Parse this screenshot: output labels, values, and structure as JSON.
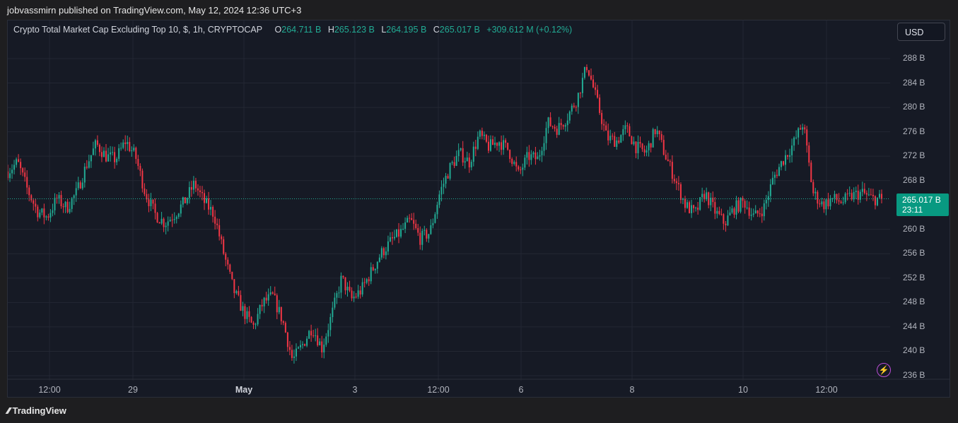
{
  "published_line": "jobvassmirn published on TradingView.com, May 12, 2024 12:36 UTC+3",
  "legend": {
    "symbol": "Crypto Total Market Cap Excluding Top 10, $, 1h, CRYPTOCAP",
    "o_label": "O",
    "o_value": "264.711 B",
    "h_label": "H",
    "h_value": "265.123 B",
    "l_label": "L",
    "l_value": "264.195 B",
    "c_label": "C",
    "c_value": "265.017 B",
    "change": "+309.612 M (+0.12%)"
  },
  "currency": "USD",
  "last_price": {
    "value": "265.017 B",
    "countdown": "23:11"
  },
  "brand": "TradingView",
  "colors": {
    "up": "#22ab94",
    "down": "#f23645",
    "background": "#161a25",
    "grid": "#232733"
  },
  "chart_data": {
    "type": "candlestick",
    "y_ticks": [
      "288 B",
      "284 B",
      "280 B",
      "276 B",
      "272 B",
      "268 B",
      "260 B",
      "256 B",
      "252 B",
      "248 B",
      "244 B",
      "240 B",
      "236 B"
    ],
    "x_ticks": [
      "12:00",
      "29",
      "May",
      "3",
      "12:00",
      "6",
      "8",
      "10",
      "12:00"
    ],
    "y_unit": "B",
    "ylim": [
      236,
      290
    ],
    "last_close": 265.017,
    "close_path": [
      {
        "d": "Apr 27 12:00",
        "v": 269.5
      },
      {
        "d": "",
        "v": 271.0
      },
      {
        "d": "",
        "v": 266.5
      },
      {
        "d": "",
        "v": 263.0
      },
      {
        "d": "",
        "v": 262.0
      },
      {
        "d": "",
        "v": 265.0
      },
      {
        "d": "",
        "v": 263.5
      },
      {
        "d": "Apr 28",
        "v": 266.0
      },
      {
        "d": "",
        "v": 270.5
      },
      {
        "d": "",
        "v": 274.0
      },
      {
        "d": "",
        "v": 272.0
      },
      {
        "d": "",
        "v": 271.5
      },
      {
        "d": "",
        "v": 274.5
      },
      {
        "d": "Apr 29",
        "v": 272.0
      },
      {
        "d": "",
        "v": 266.0
      },
      {
        "d": "",
        "v": 262.5
      },
      {
        "d": "",
        "v": 261.0
      },
      {
        "d": "",
        "v": 262.5
      },
      {
        "d": "",
        "v": 264.5
      },
      {
        "d": "",
        "v": 267.5
      },
      {
        "d": "",
        "v": 264.5
      },
      {
        "d": "",
        "v": 262.5
      },
      {
        "d": "Apr 30",
        "v": 256.0
      },
      {
        "d": "",
        "v": 250.0
      },
      {
        "d": "",
        "v": 246.5
      },
      {
        "d": "",
        "v": 244.0
      },
      {
        "d": "",
        "v": 248.0
      },
      {
        "d": "",
        "v": 249.0
      },
      {
        "d": "May",
        "v": 245.0
      },
      {
        "d": "",
        "v": 238.5
      },
      {
        "d": "",
        "v": 241.0
      },
      {
        "d": "",
        "v": 244.0
      },
      {
        "d": "",
        "v": 240.5
      },
      {
        "d": "",
        "v": 246.0
      },
      {
        "d": "",
        "v": 252.0
      },
      {
        "d": "",
        "v": 248.5
      },
      {
        "d": "May 2",
        "v": 250.0
      },
      {
        "d": "",
        "v": 253.0
      },
      {
        "d": "",
        "v": 256.0
      },
      {
        "d": "",
        "v": 258.0
      },
      {
        "d": "",
        "v": 259.5
      },
      {
        "d": "",
        "v": 261.5
      },
      {
        "d": "",
        "v": 258.5
      },
      {
        "d": "May 3",
        "v": 259.5
      },
      {
        "d": "",
        "v": 266.0
      },
      {
        "d": "",
        "v": 270.0
      },
      {
        "d": "",
        "v": 272.5
      },
      {
        "d": "",
        "v": 271.0
      },
      {
        "d": "",
        "v": 275.5
      },
      {
        "d": "",
        "v": 273.5
      },
      {
        "d": "",
        "v": 274.5
      },
      {
        "d": "",
        "v": 273.0
      },
      {
        "d": "May 4",
        "v": 269.0
      },
      {
        "d": "",
        "v": 272.0
      },
      {
        "d": "",
        "v": 271.5
      },
      {
        "d": "",
        "v": 277.5
      },
      {
        "d": "",
        "v": 276.5
      },
      {
        "d": "",
        "v": 278.5
      },
      {
        "d": "May 6",
        "v": 281.5
      },
      {
        "d": "",
        "v": 287.0
      },
      {
        "d": "",
        "v": 281.0
      },
      {
        "d": "",
        "v": 275.0
      },
      {
        "d": "",
        "v": 274.5
      },
      {
        "d": "",
        "v": 276.5
      },
      {
        "d": "",
        "v": 273.5
      },
      {
        "d": "",
        "v": 272.5
      },
      {
        "d": "",
        "v": 276.5
      },
      {
        "d": "",
        "v": 272.0
      },
      {
        "d": "May 8",
        "v": 268.0
      },
      {
        "d": "",
        "v": 264.0
      },
      {
        "d": "",
        "v": 262.5
      },
      {
        "d": "",
        "v": 266.0
      },
      {
        "d": "",
        "v": 263.0
      },
      {
        "d": "",
        "v": 261.0
      },
      {
        "d": "",
        "v": 263.5
      },
      {
        "d": "",
        "v": 264.5
      },
      {
        "d": "",
        "v": 262.0
      },
      {
        "d": "",
        "v": 263.5
      },
      {
        "d": "May 10",
        "v": 268.5
      },
      {
        "d": "",
        "v": 271.5
      },
      {
        "d": "",
        "v": 274.0
      },
      {
        "d": "",
        "v": 277.5
      },
      {
        "d": "",
        "v": 266.0
      },
      {
        "d": "",
        "v": 264.0
      },
      {
        "d": "",
        "v": 265.0
      },
      {
        "d": "",
        "v": 264.5
      },
      {
        "d": "",
        "v": 265.5
      },
      {
        "d": "",
        "v": 266.0
      },
      {
        "d": "",
        "v": 265.0
      },
      {
        "d": "May 12",
        "v": 265.017
      }
    ]
  }
}
